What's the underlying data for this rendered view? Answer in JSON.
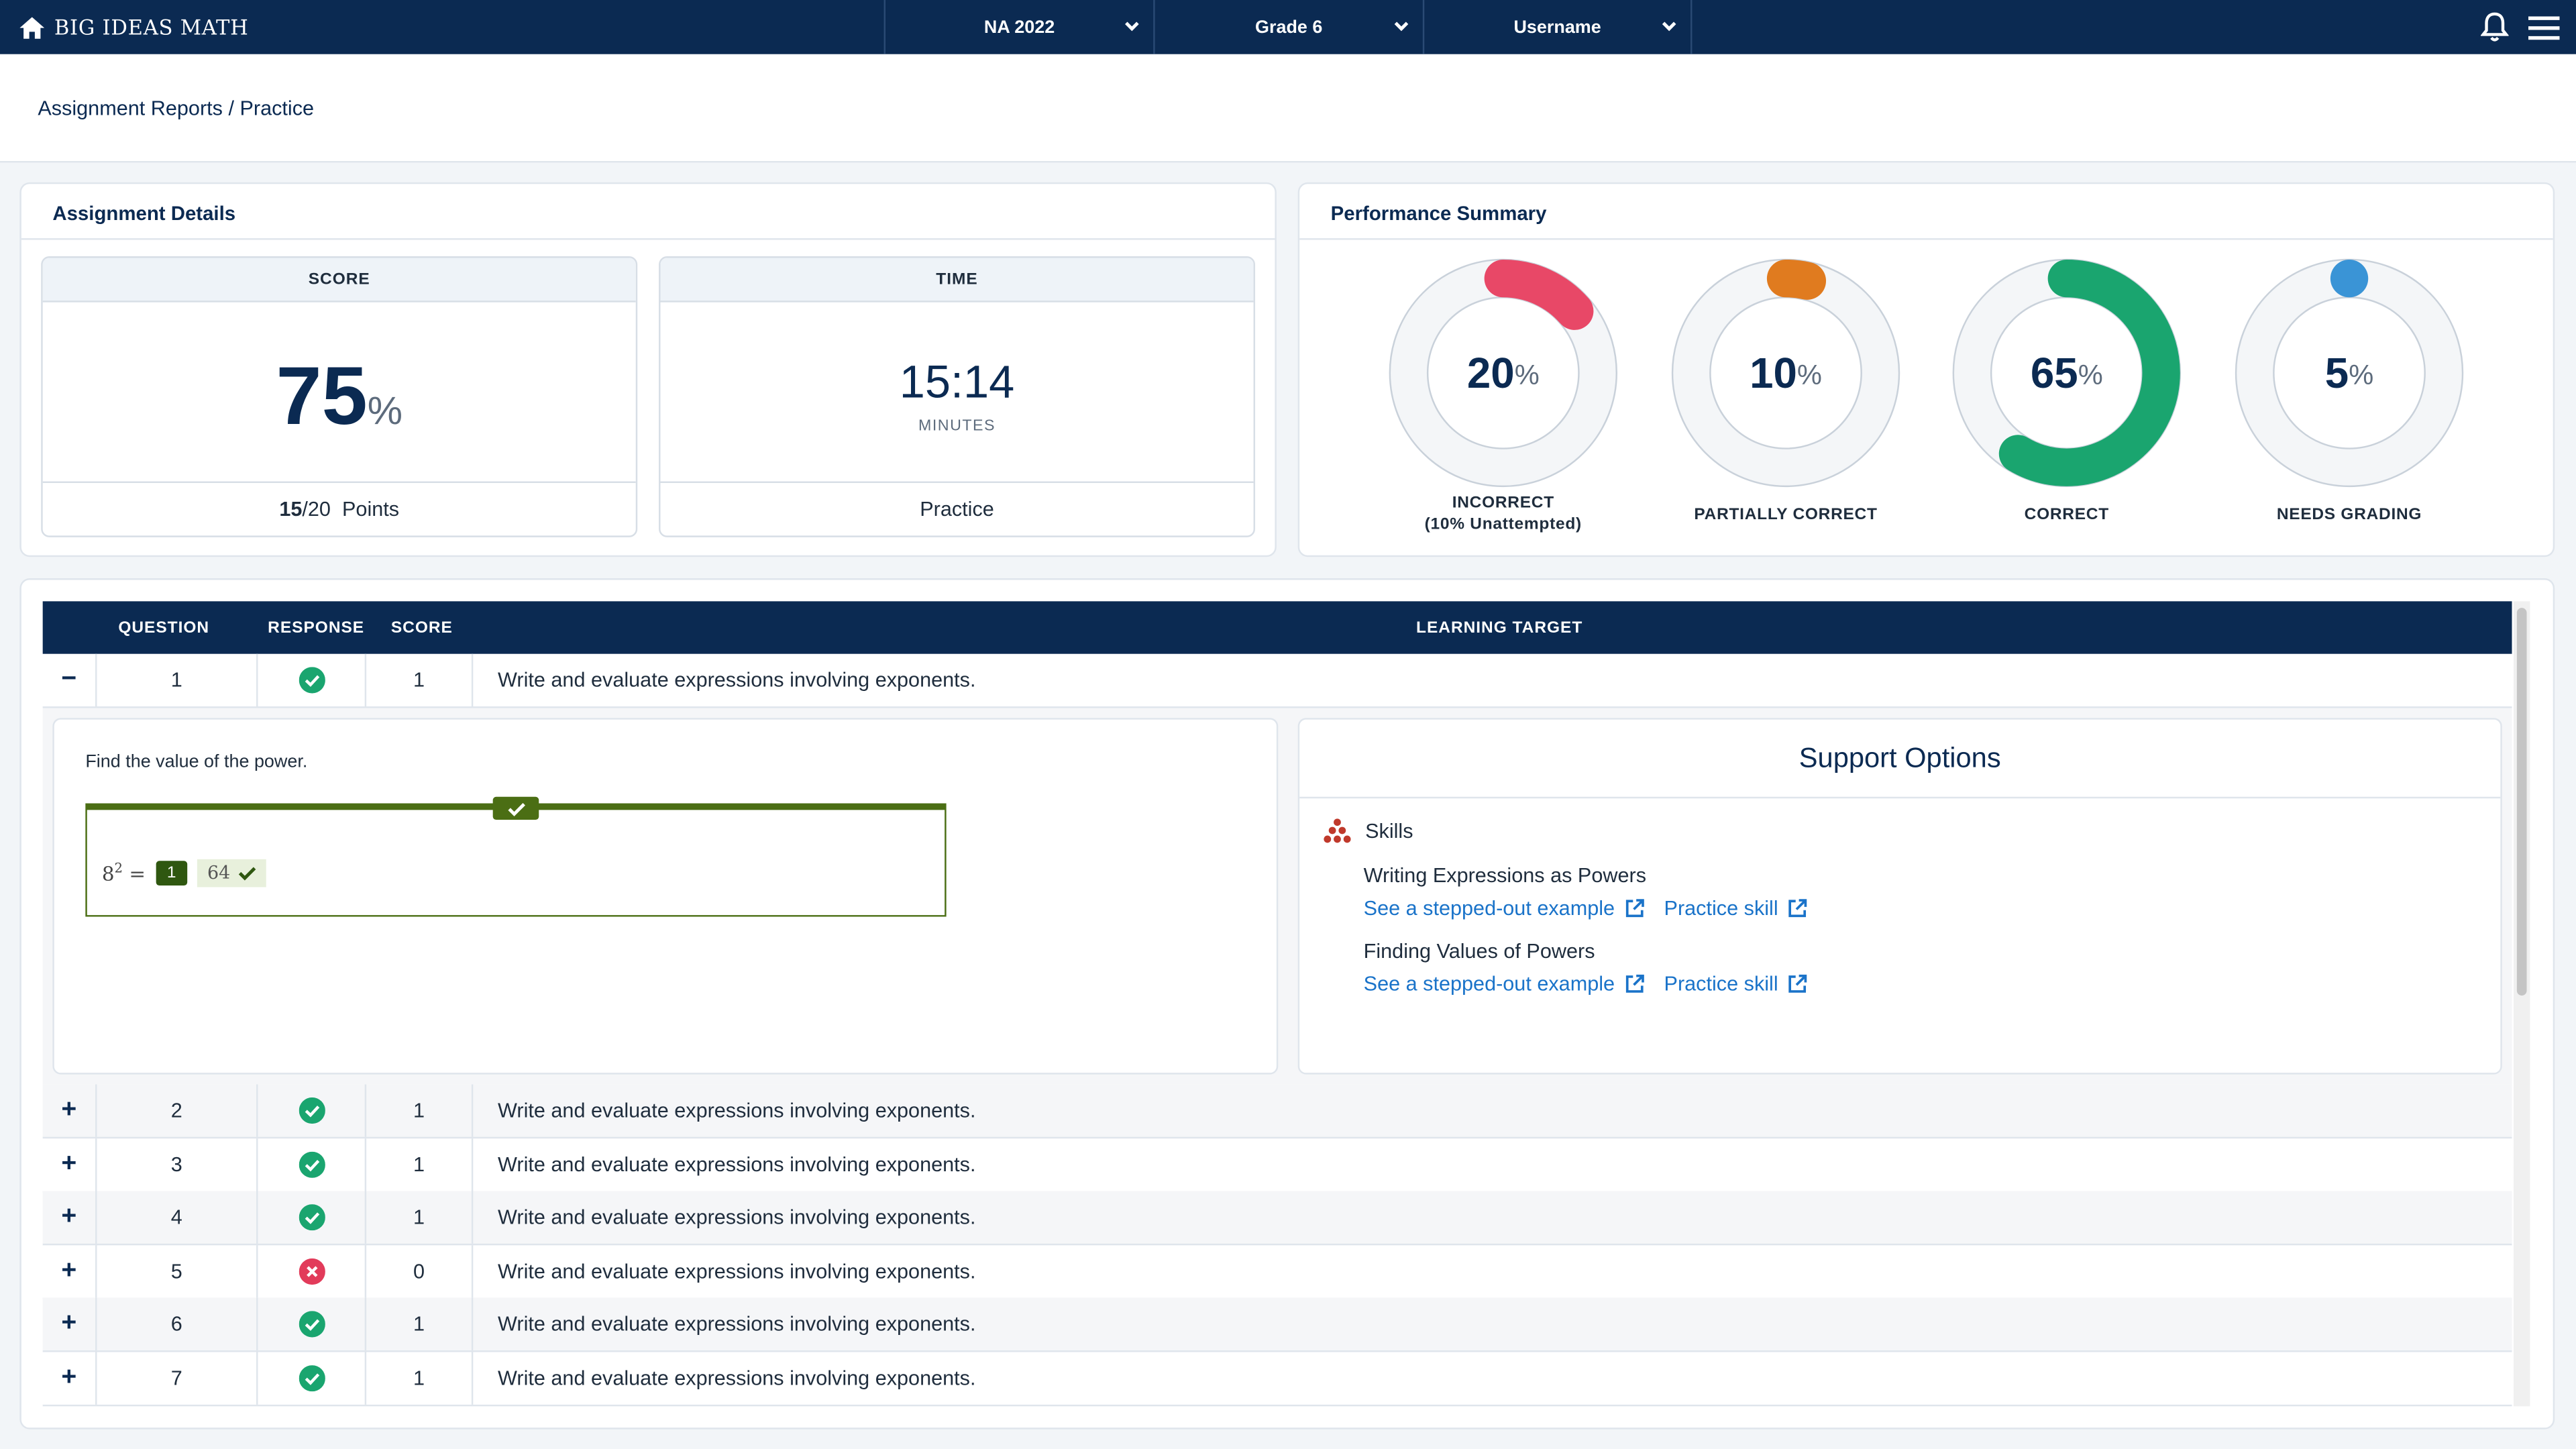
{
  "header": {
    "brand": "BIG IDEAS MATH",
    "selectors": [
      {
        "label": "NA 2022"
      },
      {
        "label": "Grade 6"
      },
      {
        "label": "Username"
      }
    ]
  },
  "breadcrumb": "Assignment Reports / Practice",
  "assignment_details": {
    "title": "Assignment Details",
    "score": {
      "header": "SCORE",
      "value": "75",
      "unit": "%",
      "points_earned": "15",
      "points_total": "/20",
      "points_label": "Points"
    },
    "time": {
      "header": "TIME",
      "value": "15:14",
      "unit": "MINUTES",
      "mode": "Practice"
    }
  },
  "performance_summary": {
    "title": "Performance Summary",
    "items": [
      {
        "value": "20",
        "unit": "%",
        "label": "INCORRECT",
        "sublabel": "(10% Unattempted)",
        "fraction": 0.2,
        "color": "#e84867"
      },
      {
        "value": "10",
        "unit": "%",
        "label": "PARTIALLY CORRECT",
        "sublabel": "",
        "fraction": 0.1,
        "color": "#e07b1f"
      },
      {
        "value": "65",
        "unit": "%",
        "label": "CORRECT",
        "sublabel": "",
        "fraction": 0.65,
        "color": "#1aa56f"
      },
      {
        "value": "5",
        "unit": "%",
        "label": "NEEDS GRADING",
        "sublabel": "",
        "fraction": 0.05,
        "color": "#3a94d6"
      }
    ]
  },
  "table": {
    "headers": {
      "question": "QUESTION",
      "response": "RESPONSE",
      "score": "SCORE",
      "learning_target": "LEARNING TARGET"
    },
    "rows": [
      {
        "toggle": "−",
        "q": "1",
        "response": "correct",
        "score": "1",
        "target": "Write and evaluate expressions involving exponents."
      },
      {
        "toggle": "+",
        "q": "2",
        "response": "correct",
        "score": "1",
        "target": "Write and evaluate expressions involving exponents."
      },
      {
        "toggle": "+",
        "q": "3",
        "response": "correct",
        "score": "1",
        "target": "Write and evaluate expressions involving exponents."
      },
      {
        "toggle": "+",
        "q": "4",
        "response": "correct",
        "score": "1",
        "target": "Write and evaluate expressions involving exponents."
      },
      {
        "toggle": "+",
        "q": "5",
        "response": "incorrect",
        "score": "0",
        "target": "Write and evaluate expressions involving exponents."
      },
      {
        "toggle": "+",
        "q": "6",
        "response": "correct",
        "score": "1",
        "target": "Write and evaluate expressions involving exponents."
      },
      {
        "toggle": "+",
        "q": "7",
        "response": "correct",
        "score": "1",
        "target": "Write and evaluate expressions involving exponents."
      }
    ]
  },
  "question_detail": {
    "prompt": "Find the value of the power.",
    "expression_base": "8",
    "expression_exp": "2",
    "expression_eq": "=",
    "badge": "1",
    "answer": "64"
  },
  "support": {
    "title": "Support Options",
    "skills_label": "Skills",
    "skills": [
      {
        "name": "Writing Expressions as Powers",
        "example_link": "See a stepped-out example",
        "practice_link": "Practice skill"
      },
      {
        "name": "Finding Values of Powers",
        "example_link": "See a stepped-out example",
        "practice_link": "Practice skill"
      }
    ]
  },
  "icons": {
    "home": "home-icon",
    "bell": "bell-icon",
    "menu": "hamburger-icon",
    "correct": "check-circle-icon",
    "incorrect": "x-circle-icon",
    "external": "external-link-icon",
    "skills": "skills-pyramid-icon"
  }
}
